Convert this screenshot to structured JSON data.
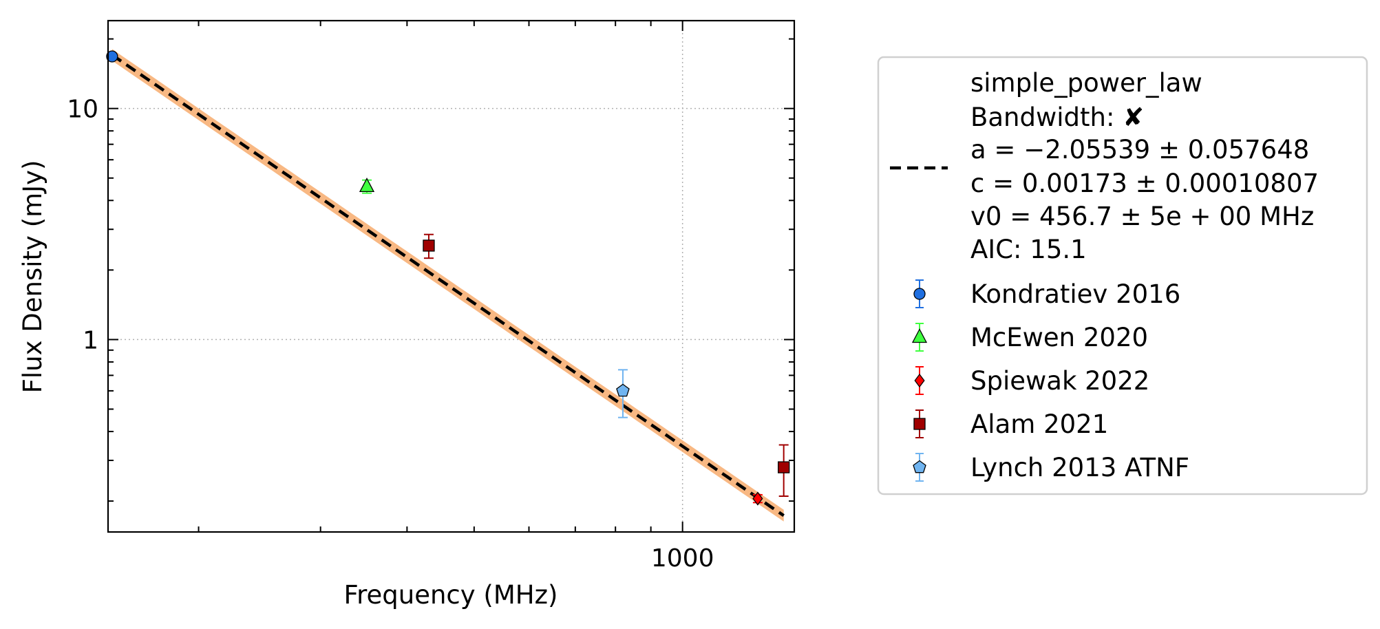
{
  "chart_data": {
    "type": "scatter",
    "xlabel": "Frequency (MHz)",
    "ylabel": "Flux Density (mJy)",
    "xscale": "log",
    "yscale": "log",
    "xlim": [
      148,
      1450
    ],
    "ylim": [
      0.147,
      24
    ],
    "x_ticks": [
      {
        "value": 1000,
        "label": "1000"
      }
    ],
    "y_ticks": [
      {
        "value": 1,
        "label": "1"
      },
      {
        "value": 10,
        "label": "10"
      }
    ],
    "grid": true,
    "legend_position": "outside-right",
    "fit": {
      "model_label": "simple_power_law",
      "bandwidth_label": "Bandwidth: ✘",
      "param_lines": [
        "a = −2.05539 ± 0.057648",
        "c = 0.00173 ± 0.00010807",
        "v0 = 456.7 ± 5e + 00 MHz"
      ],
      "aic_label": "AIC: 15.1",
      "a": -2.05539,
      "v0": 456.7,
      "c": 0.00173,
      "x_range": [
        150,
        1400
      ],
      "line_color": "#000000",
      "band_color": "#f5a05a"
    },
    "series": [
      {
        "name": "Kondratiev 2016",
        "marker": "circle",
        "color": "#1f6fe0",
        "points": [
          {
            "x": 150,
            "y": 16.8,
            "yerr": [
              0,
              0
            ]
          }
        ]
      },
      {
        "name": "McEwen 2020",
        "marker": "triangle",
        "color": "#3fff3f",
        "points": [
          {
            "x": 350,
            "y": 4.6,
            "yerr": [
              0.3,
              0.3
            ]
          }
        ]
      },
      {
        "name": "Spiewak 2022",
        "marker": "diamond",
        "color": "#ff0000",
        "points": [
          {
            "x": 1284,
            "y": 0.205,
            "yerr": [
              0.008,
              0.008
            ]
          }
        ]
      },
      {
        "name": "Alam 2021",
        "marker": "square",
        "color": "#a00000",
        "points": [
          {
            "x": 430,
            "y": 2.55,
            "yerr": [
              0.3,
              0.3
            ]
          },
          {
            "x": 1400,
            "y": 0.28,
            "yerr": [
              0.07,
              0.07
            ]
          }
        ]
      },
      {
        "name": "Lynch 2013 ATNF",
        "marker": "pentagon",
        "color": "#70b4f0",
        "points": [
          {
            "x": 820,
            "y": 0.6,
            "yerr": [
              0.14,
              0.14
            ]
          }
        ]
      }
    ]
  }
}
